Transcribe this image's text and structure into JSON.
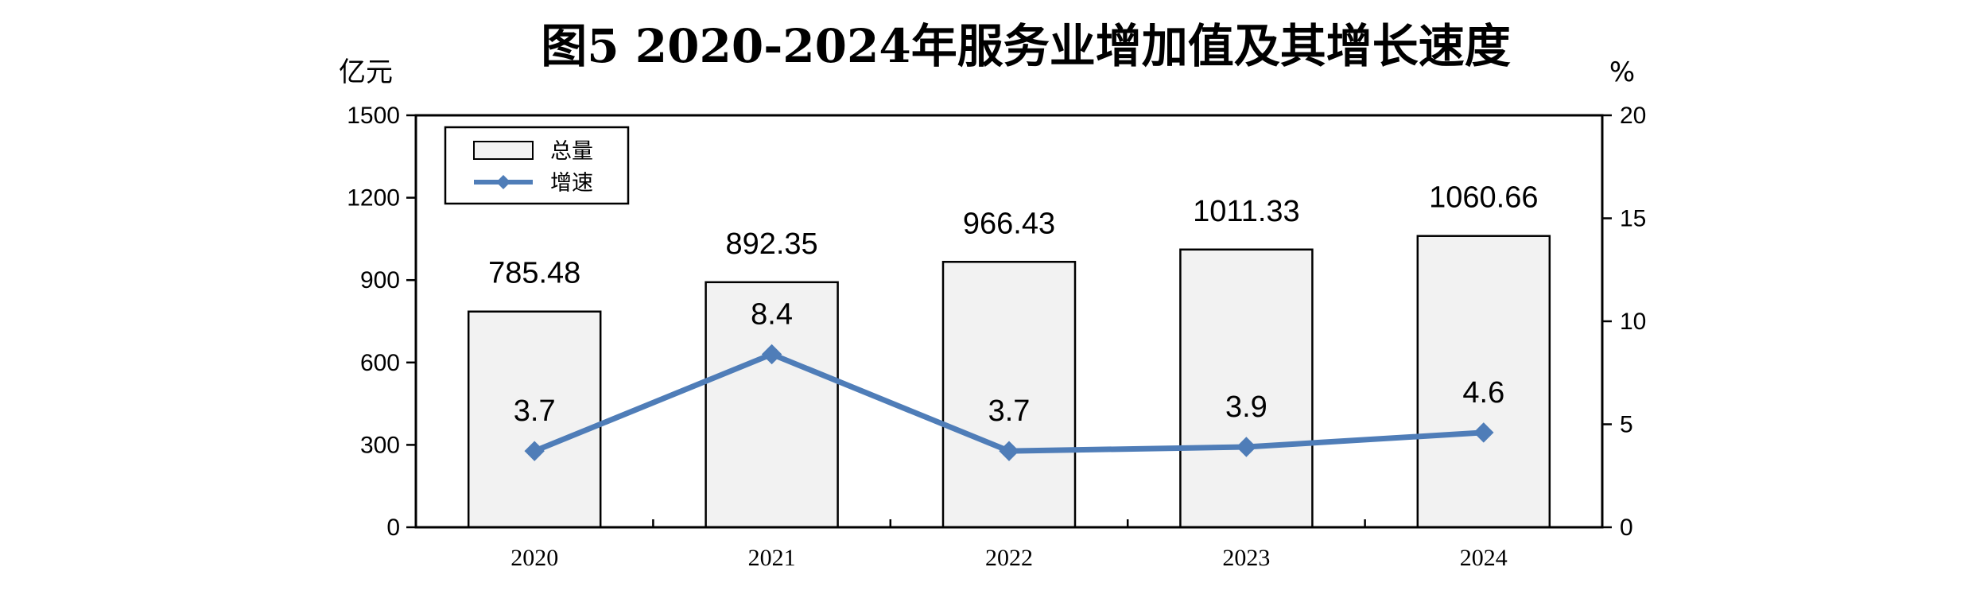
{
  "chart_data": {
    "type": "bar",
    "title": "图5   2020-2024年服务业增加值及其增长速度",
    "left_unit": "亿元",
    "right_unit": "%",
    "categories": [
      "2020",
      "2021",
      "2022",
      "2023",
      "2024"
    ],
    "ylim_left": [
      0,
      1500
    ],
    "yticks_left": [
      0,
      300,
      600,
      900,
      1200,
      1500
    ],
    "ylim_right": [
      0,
      20
    ],
    "yticks_right": [
      0,
      5,
      10,
      15,
      20
    ],
    "grid": false,
    "legend_position": "top-left",
    "series": [
      {
        "name": "总量",
        "type": "bar",
        "axis": "left",
        "values": [
          785.48,
          892.35,
          966.43,
          1011.33,
          1060.66
        ],
        "labels": [
          "785.48",
          "892.35",
          "966.43",
          "1011.33",
          "1060.66"
        ],
        "color": "#F2F2F2",
        "edge_color": "#000000"
      },
      {
        "name": "增速",
        "type": "line",
        "axis": "right",
        "values": [
          3.7,
          8.4,
          3.7,
          3.9,
          4.6
        ],
        "labels": [
          "3.7",
          "8.4",
          "3.7",
          "3.9",
          "4.6"
        ],
        "color": "#4F7DB8",
        "marker": "diamond"
      }
    ]
  }
}
